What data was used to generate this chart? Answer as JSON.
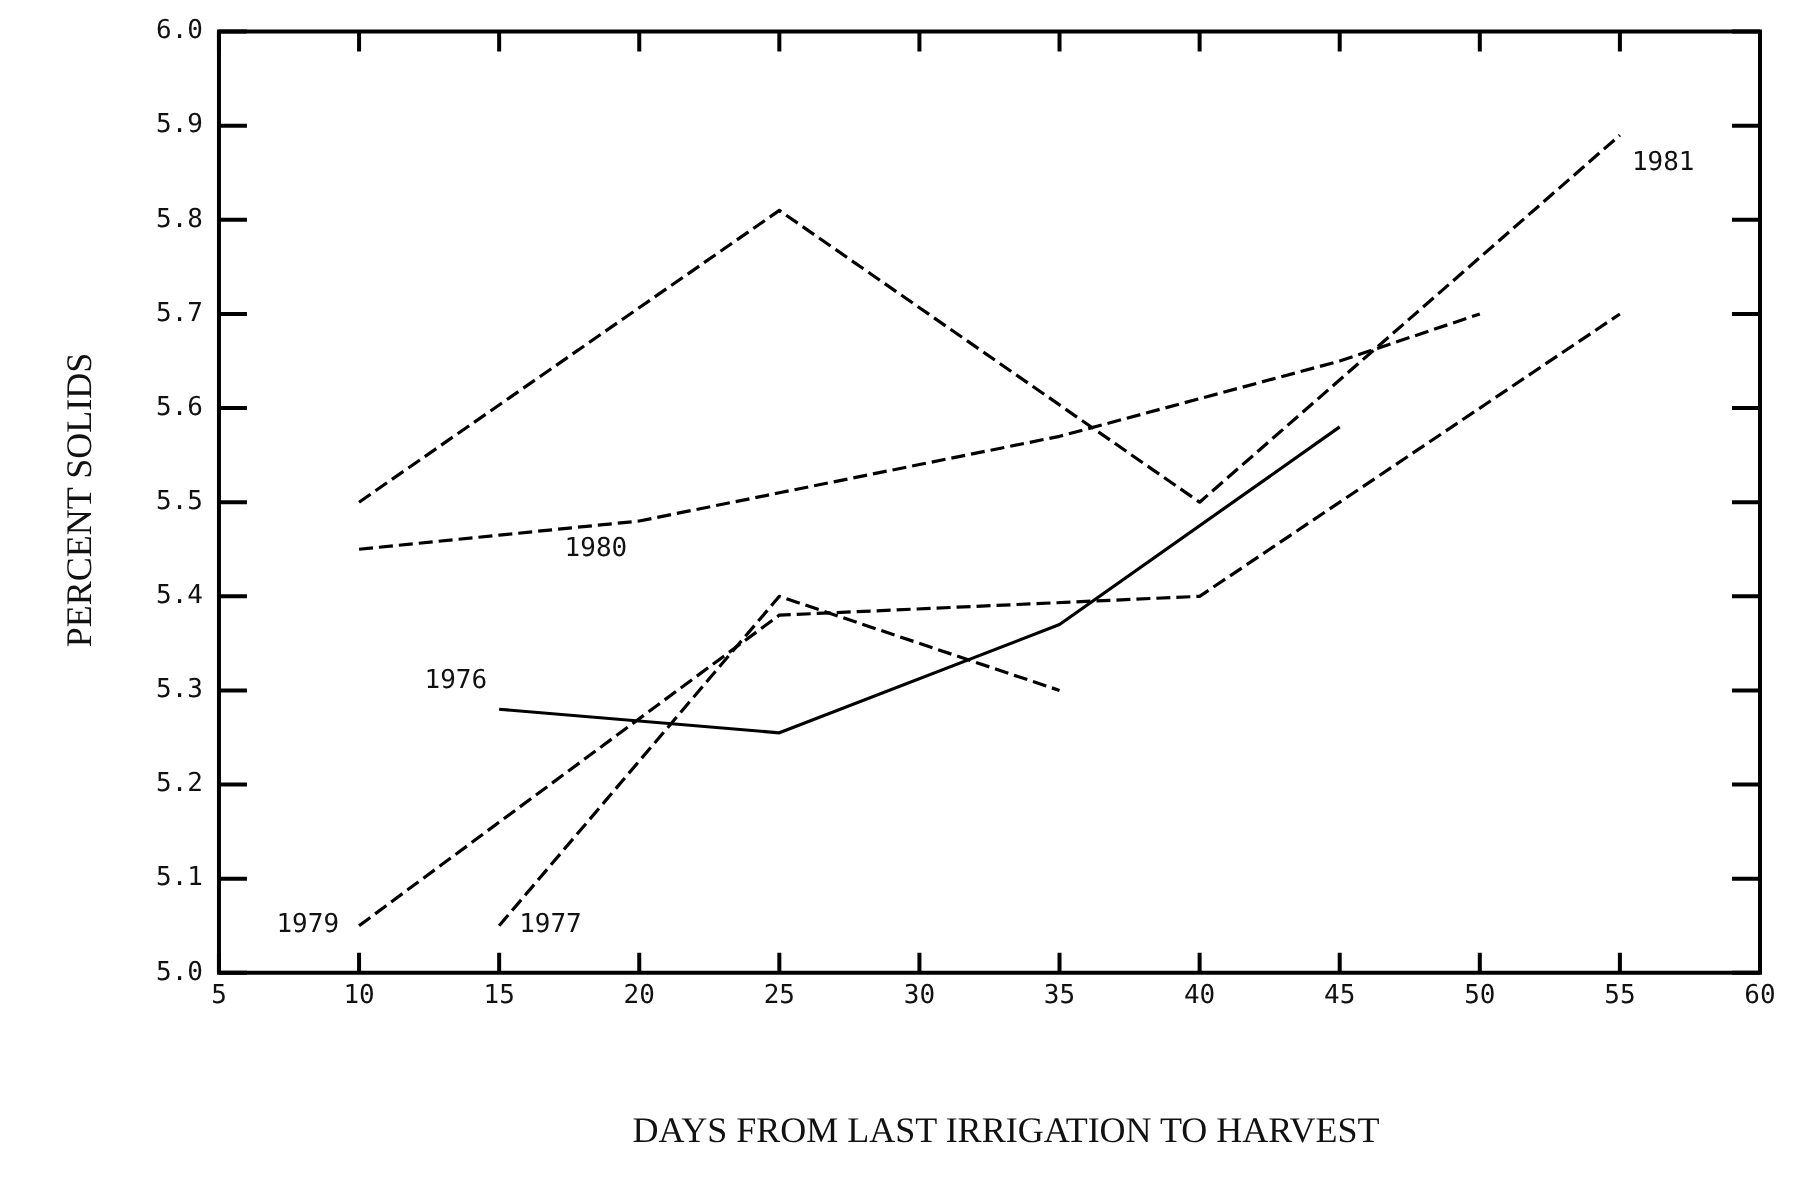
{
  "chart_data": {
    "type": "line",
    "xlabel": "DAYS FROM LAST IRRIGATION TO HARVEST",
    "ylabel": "PERCENT SOLIDS",
    "xlim": [
      5,
      60
    ],
    "xticks": [
      5,
      10,
      15,
      20,
      25,
      30,
      35,
      40,
      45,
      50,
      55,
      60
    ],
    "ylim": [
      5,
      6
    ],
    "yticks": [
      {
        "value": 5,
        "label": "5.0"
      },
      5.1,
      5.2,
      5.3,
      5.4,
      5.5,
      5.6,
      5.7,
      5.8,
      5.9,
      {
        "value": 6,
        "label": "6.0"
      }
    ],
    "grid": false,
    "legend": false,
    "marker": "none",
    "series": [
      {
        "name": "1981",
        "color": "#000000",
        "line_style": "dashed",
        "x": [
          10,
          25,
          40,
          55
        ],
        "values": [
          5.5,
          5.81,
          5.5,
          5.89
        ]
      },
      {
        "name": "1980",
        "color": "#000000",
        "line_style": "dashed",
        "x": [
          10,
          15,
          20,
          25,
          30,
          35,
          40,
          45,
          50
        ],
        "values": [
          5.45,
          5.465,
          5.48,
          5.51,
          5.54,
          5.57,
          5.61,
          5.65,
          5.7
        ]
      },
      {
        "name": "1976",
        "color": "#000000",
        "line_style": "solid",
        "x": [
          15,
          25,
          35,
          45
        ],
        "values": [
          5.28,
          5.255,
          5.37,
          5.58
        ]
      },
      {
        "name": "1977",
        "color": "#000000",
        "line_style": "dashed",
        "x": [
          15,
          25,
          35
        ],
        "values": [
          5.05,
          5.4,
          5.3
        ]
      },
      {
        "name": "1979",
        "color": "#000000",
        "line_style": "dashed",
        "x": [
          10,
          25,
          40,
          55
        ],
        "values": [
          5.05,
          5.38,
          5.4,
          5.7
        ]
      }
    ]
  }
}
